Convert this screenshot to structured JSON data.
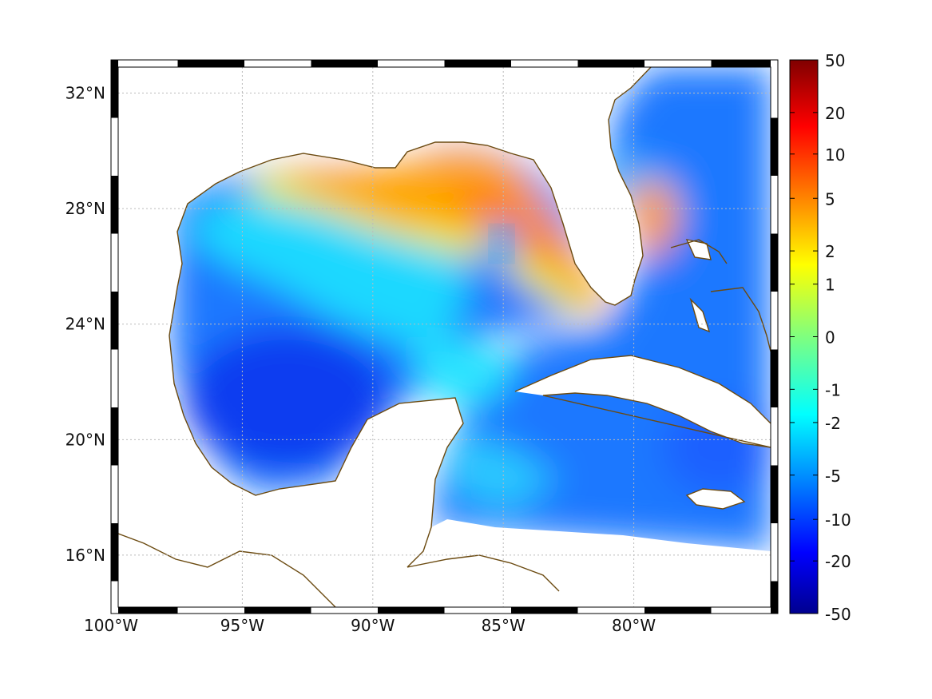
{
  "map": {
    "type": "heatmap",
    "lon_range": [
      -100,
      -75
    ],
    "lat_range": [
      14.2,
      32.9
    ],
    "x_ticks": [
      {
        "lon": -100,
        "label": "100°W"
      },
      {
        "lon": -95,
        "label": "95°W"
      },
      {
        "lon": -90,
        "label": "90°W"
      },
      {
        "lon": -85,
        "label": "85°W"
      },
      {
        "lon": -80,
        "label": "80°W"
      }
    ],
    "y_ticks": [
      {
        "lat": 32,
        "label": "32°N"
      },
      {
        "lat": 28,
        "label": "28°N"
      },
      {
        "lat": 24,
        "label": "24°N"
      },
      {
        "lat": 20,
        "label": "20°N"
      },
      {
        "lat": 16,
        "label": "16°N"
      }
    ],
    "grid": true,
    "coastline_color": "#6b4a10",
    "land_color": "#ffffff"
  },
  "colorbar": {
    "placement": "right",
    "colormap": "jet",
    "ticks": [
      "50",
      "20",
      "10",
      "5",
      "2",
      "1",
      "0",
      "-1",
      "-2",
      "-5",
      "-10",
      "-20",
      "-50"
    ],
    "tick_fractions": [
      1.0,
      0.905,
      0.83,
      0.75,
      0.655,
      0.595,
      0.5,
      0.405,
      0.345,
      0.25,
      0.17,
      0.095,
      0.0
    ]
  }
}
